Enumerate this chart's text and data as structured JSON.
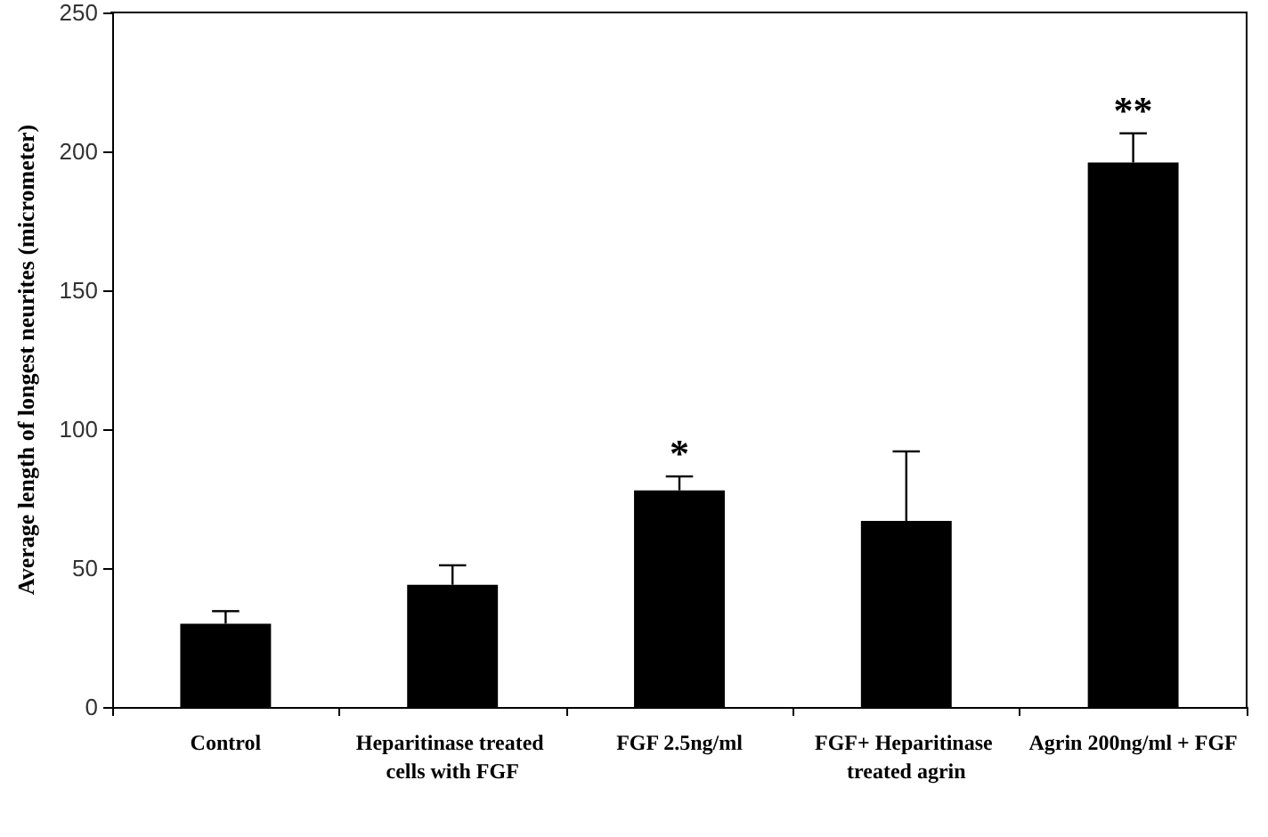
{
  "chart_data": {
    "type": "bar",
    "ylabel": "Average length of longest neurites (micrometer)",
    "categories": [
      "Control",
      "Heparitinase treated cells with FGF",
      "FGF 2.5ng/ml",
      "FGF+ Heparitinase treated agrin",
      "Agrin 200ng/ml + FGF"
    ],
    "values": [
      30,
      44,
      78,
      67,
      196
    ],
    "errors": [
      4.5,
      7,
      5,
      25,
      10.5
    ],
    "color": "#000000",
    "ylim": [
      0,
      250
    ],
    "yticks": [
      0,
      50,
      100,
      150,
      200,
      250
    ],
    "grid": false,
    "annotations": [
      {
        "text": "*",
        "x": "FGF 2.5ng/ml",
        "y": 83
      },
      {
        "text": "**",
        "x": "Agrin 200ng/ml + FGF",
        "y": 206.5
      }
    ]
  }
}
